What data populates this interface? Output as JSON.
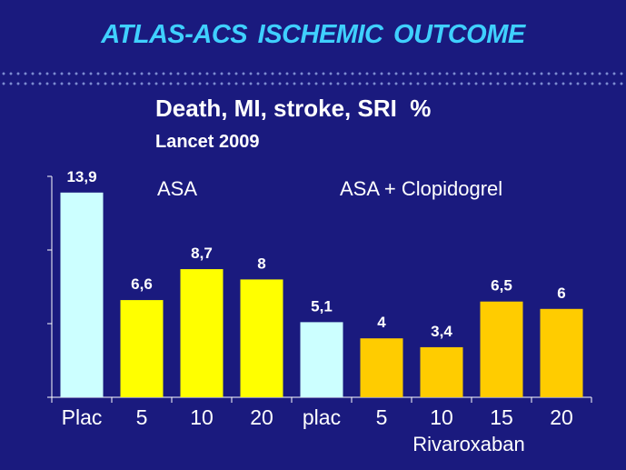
{
  "slide": {
    "title": "ATLAS-ACS    ISCHEMIC OUTCOME",
    "subtitle": "Death, MI, stroke, SRI  %",
    "source": "Lancet 2009"
  },
  "chart_data": {
    "type": "bar",
    "title": "Death, MI, stroke, SRI  %",
    "ylim": [
      0,
      15
    ],
    "categories": [
      "Plac",
      "5",
      "10",
      "20",
      "plac",
      "5",
      "10",
      "15",
      "20"
    ],
    "values": [
      13.9,
      6.6,
      8.7,
      8,
      5.1,
      4,
      3.4,
      6.5,
      6
    ],
    "value_labels": [
      "13,9",
      "6,6",
      "8,7",
      "8",
      "5,1",
      "4",
      "3,4",
      "6,5",
      "6"
    ],
    "bar_colors": [
      "#ccffff",
      "#ffff00",
      "#ffff00",
      "#ffff00",
      "#ccffff",
      "#ffcc00",
      "#ffcc00",
      "#ffcc00",
      "#ffcc00"
    ],
    "group_labels": [
      "ASA",
      "ASA + Clopidogrel"
    ],
    "x_group_label": "Rivaroxaban",
    "grid": false,
    "colors": {
      "background": "#1a1a7e",
      "title": "#3fd0ff",
      "text": "#ffffff",
      "axis": "#ffffff"
    }
  }
}
